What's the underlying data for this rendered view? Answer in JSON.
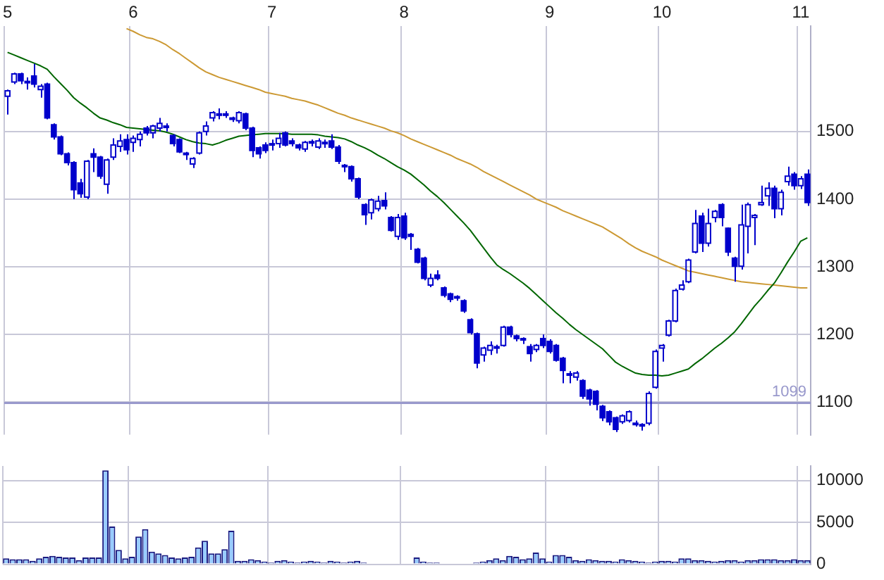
{
  "chart_data": [
    {
      "type": "candlestick",
      "categories": [
        "5",
        null,
        null,
        null,
        null,
        null,
        null,
        null,
        null,
        null,
        null,
        null,
        null,
        null,
        null,
        null,
        null,
        null,
        null,
        "6",
        null,
        null,
        null,
        null,
        null,
        null,
        null,
        null,
        null,
        null,
        null,
        null,
        null,
        null,
        null,
        null,
        null,
        null,
        null,
        null,
        "7",
        null,
        null,
        null,
        null,
        null,
        null,
        null,
        null,
        null,
        null,
        null,
        null,
        null,
        null,
        null,
        null,
        null,
        null,
        null,
        "8",
        null,
        null,
        null,
        null,
        null,
        null,
        null,
        null,
        null,
        null,
        null,
        null,
        null,
        null,
        null,
        null,
        null,
        null,
        null,
        null,
        null,
        "9",
        null,
        null,
        null,
        null,
        null,
        null,
        null,
        null,
        null,
        null,
        null,
        null,
        null,
        null,
        null,
        null,
        "10",
        null,
        null,
        null,
        null,
        null,
        null,
        null,
        null,
        null,
        null,
        null,
        null,
        null,
        null,
        null,
        null,
        null,
        null,
        null,
        null,
        "11",
        null
      ],
      "series": [
        {
          "type": "line",
          "color": "#006600",
          "values": [
            1617,
            1613,
            1609,
            1605,
            1601,
            1597,
            1592,
            1581,
            1571,
            1561,
            1550,
            1542,
            1535,
            1527,
            1520,
            1517,
            1513,
            1510,
            1506,
            1505,
            1504,
            1503,
            1502,
            1501,
            1499,
            1496,
            1492,
            1488,
            1485,
            1483,
            1482,
            1480,
            1483,
            1487,
            1490,
            1493,
            1494,
            1495,
            1496,
            1497,
            1497,
            1497,
            1497,
            1496,
            1496,
            1496,
            1496,
            1495,
            1493,
            1492,
            1491,
            1489,
            1485,
            1480,
            1476,
            1471,
            1465,
            1460,
            1454,
            1448,
            1443,
            1437,
            1429,
            1421,
            1412,
            1404,
            1395,
            1385,
            1375,
            1365,
            1354,
            1341,
            1328,
            1315,
            1303,
            1296,
            1290,
            1283,
            1276,
            1268,
            1259,
            1250,
            1241,
            1232,
            1224,
            1215,
            1207,
            1200,
            1193,
            1186,
            1179,
            1169,
            1159,
            1153,
            1148,
            1143,
            1141,
            1140,
            1140,
            1139,
            1140,
            1143,
            1146,
            1149,
            1157,
            1164,
            1172,
            1180,
            1187,
            1195,
            1204,
            1216,
            1229,
            1242,
            1253,
            1265,
            1276,
            1291,
            1307,
            1322,
            1338,
            1343
          ]
        },
        {
          "type": "line",
          "color": "#cc9933",
          "values": [
            null,
            null,
            null,
            null,
            null,
            null,
            null,
            null,
            null,
            null,
            null,
            null,
            null,
            null,
            null,
            null,
            null,
            null,
            1652,
            1648,
            1643,
            1639,
            1637,
            1633,
            1628,
            1621,
            1615,
            1608,
            1601,
            1594,
            1588,
            1584,
            1580,
            1577,
            1574,
            1571,
            1568,
            1565,
            1562,
            1558,
            1556,
            1554,
            1552,
            1549,
            1547,
            1545,
            1542,
            1539,
            1535,
            1531,
            1527,
            1524,
            1520,
            1517,
            1514,
            1511,
            1508,
            1505,
            1501,
            1498,
            1494,
            1489,
            1485,
            1481,
            1477,
            1473,
            1469,
            1465,
            1460,
            1456,
            1452,
            1447,
            1441,
            1436,
            1431,
            1426,
            1421,
            1416,
            1411,
            1406,
            1400,
            1396,
            1392,
            1388,
            1383,
            1379,
            1375,
            1371,
            1367,
            1363,
            1359,
            1353,
            1347,
            1341,
            1334,
            1328,
            1323,
            1319,
            1315,
            1310,
            1306,
            1302,
            1298,
            1294,
            1292,
            1290,
            1288,
            1286,
            1284,
            1282,
            1280,
            1278,
            1277,
            1276,
            1275,
            1274,
            1273,
            1272,
            1271,
            1270,
            1269,
            1269
          ]
        },
        {
          "type": "candlestick",
          "color": "#0000cc",
          "ohlc": [
            [
              1552,
              1562,
              1525,
              1560
            ],
            [
              1573,
              1587,
              1570,
              1585
            ],
            [
              1585,
              1587,
              1570,
              1575
            ],
            [
              1572,
              1580,
              1562,
              1574
            ],
            [
              1582,
              1600,
              1565,
              1570
            ],
            [
              1562,
              1570,
              1550,
              1567
            ],
            [
              1570,
              1572,
              1518,
              1520
            ],
            [
              1510,
              1512,
              1488,
              1492
            ],
            [
              1492,
              1494,
              1465,
              1467
            ],
            [
              1467,
              1469,
              1450,
              1454
            ],
            [
              1454,
              1456,
              1400,
              1414
            ],
            [
              1424,
              1430,
              1402,
              1408
            ],
            [
              1403,
              1458,
              1400,
              1456
            ],
            [
              1467,
              1475,
              1440,
              1462
            ],
            [
              1462,
              1464,
              1430,
              1434
            ],
            [
              1422,
              1460,
              1408,
              1458
            ],
            [
              1462,
              1490,
              1458,
              1480
            ],
            [
              1478,
              1496,
              1470,
              1486
            ],
            [
              1488,
              1496,
              1466,
              1473
            ],
            [
              1484,
              1494,
              1470,
              1490
            ],
            [
              1488,
              1500,
              1478,
              1496
            ],
            [
              1505,
              1508,
              1494,
              1498
            ],
            [
              1498,
              1510,
              1490,
              1508
            ],
            [
              1505,
              1520,
              1500,
              1512
            ],
            [
              1508,
              1512,
              1500,
              1506
            ],
            [
              1494,
              1496,
              1478,
              1482
            ],
            [
              1488,
              1490,
              1468,
              1470
            ],
            [
              1468,
              1470,
              1458,
              1466
            ],
            [
              1452,
              1462,
              1446,
              1460
            ],
            [
              1468,
              1500,
              1466,
              1498
            ],
            [
              1500,
              1515,
              1494,
              1508
            ],
            [
              1520,
              1530,
              1515,
              1528
            ],
            [
              1524,
              1534,
              1518,
              1526
            ],
            [
              1526,
              1530,
              1520,
              1524
            ],
            [
              1520,
              1522,
              1514,
              1518
            ],
            [
              1516,
              1530,
              1512,
              1528
            ],
            [
              1526,
              1528,
              1502,
              1505
            ],
            [
              1505,
              1507,
              1462,
              1472
            ],
            [
              1476,
              1478,
              1460,
              1467
            ],
            [
              1480,
              1484,
              1468,
              1472
            ],
            [
              1480,
              1488,
              1472,
              1482
            ],
            [
              1482,
              1498,
              1476,
              1490
            ],
            [
              1498,
              1500,
              1478,
              1480
            ],
            [
              1486,
              1490,
              1478,
              1482
            ],
            [
              1480,
              1482,
              1472,
              1476
            ],
            [
              1474,
              1486,
              1470,
              1484
            ],
            [
              1483,
              1488,
              1478,
              1485
            ],
            [
              1477,
              1490,
              1474,
              1486
            ],
            [
              1484,
              1488,
              1476,
              1482
            ],
            [
              1486,
              1496,
              1474,
              1477
            ],
            [
              1477,
              1480,
              1452,
              1456
            ],
            [
              1450,
              1452,
              1440,
              1448
            ],
            [
              1448,
              1450,
              1426,
              1430
            ],
            [
              1430,
              1432,
              1400,
              1403
            ],
            [
              1392,
              1394,
              1362,
              1377
            ],
            [
              1380,
              1401,
              1370,
              1399
            ],
            [
              1386,
              1405,
              1382,
              1397
            ],
            [
              1398,
              1410,
              1385,
              1390
            ],
            [
              1373,
              1375,
              1352,
              1354
            ],
            [
              1345,
              1378,
              1340,
              1373
            ],
            [
              1375,
              1380,
              1340,
              1343
            ],
            [
              1348,
              1350,
              1325,
              1345
            ],
            [
              1326,
              1328,
              1305,
              1307
            ],
            [
              1313,
              1315,
              1280,
              1283
            ],
            [
              1273,
              1290,
              1270,
              1283
            ],
            [
              1288,
              1295,
              1280,
              1283
            ],
            [
              1269,
              1271,
              1255,
              1258
            ],
            [
              1260,
              1262,
              1248,
              1252
            ],
            [
              1254,
              1258,
              1250,
              1256
            ],
            [
              1250,
              1252,
              1232,
              1235
            ],
            [
              1222,
              1224,
              1200,
              1203
            ],
            [
              1201,
              1203,
              1150,
              1158
            ],
            [
              1170,
              1182,
              1160,
              1180
            ],
            [
              1177,
              1190,
              1170,
              1184
            ],
            [
              1180,
              1185,
              1172,
              1182
            ],
            [
              1184,
              1213,
              1182,
              1211
            ],
            [
              1211,
              1213,
              1196,
              1200
            ],
            [
              1198,
              1200,
              1190,
              1194
            ],
            [
              1194,
              1196,
              1186,
              1192
            ],
            [
              1182,
              1186,
              1160,
              1172
            ],
            [
              1178,
              1186,
              1174,
              1184
            ],
            [
              1194,
              1200,
              1180,
              1184
            ],
            [
              1190,
              1193,
              1172,
              1175
            ],
            [
              1184,
              1186,
              1160,
              1162
            ],
            [
              1165,
              1167,
              1128,
              1147
            ],
            [
              1140,
              1146,
              1128,
              1142
            ],
            [
              1137,
              1146,
              1132,
              1143
            ],
            [
              1132,
              1134,
              1105,
              1109
            ],
            [
              1118,
              1120,
              1095,
              1105
            ],
            [
              1116,
              1118,
              1088,
              1097
            ],
            [
              1094,
              1096,
              1072,
              1077
            ],
            [
              1086,
              1088,
              1066,
              1071
            ],
            [
              1077,
              1079,
              1056,
              1060
            ],
            [
              1071,
              1082,
              1068,
              1080
            ],
            [
              1073,
              1088,
              1070,
              1086
            ],
            [
              1069,
              1073,
              1064,
              1067
            ],
            [
              1067,
              1069,
              1058,
              1065
            ],
            [
              1069,
              1116,
              1066,
              1113
            ],
            [
              1122,
              1178,
              1120,
              1175
            ],
            [
              1180,
              1186,
              1160,
              1184
            ],
            [
              1199,
              1222,
              1197,
              1220
            ],
            [
              1220,
              1268,
              1218,
              1265
            ],
            [
              1267,
              1280,
              1265,
              1273
            ],
            [
              1278,
              1312,
              1276,
              1310
            ],
            [
              1322,
              1384,
              1320,
              1364
            ],
            [
              1375,
              1380,
              1322,
              1335
            ],
            [
              1335,
              1386,
              1330,
              1364
            ],
            [
              1373,
              1384,
              1366,
              1382
            ],
            [
              1392,
              1394,
              1360,
              1373
            ],
            [
              1357,
              1358,
              1316,
              1322
            ],
            [
              1313,
              1315,
              1278,
              1301
            ],
            [
              1301,
              1392,
              1296,
              1362
            ],
            [
              1360,
              1395,
              1320,
              1392
            ],
            [
              1373,
              1378,
              1332,
              1376
            ],
            [
              1392,
              1420,
              1390,
              1395
            ],
            [
              1405,
              1425,
              1390,
              1416
            ],
            [
              1416,
              1420,
              1372,
              1386
            ],
            [
              1386,
              1414,
              1376,
              1410
            ],
            [
              1426,
              1448,
              1420,
              1434
            ],
            [
              1437,
              1440,
              1414,
              1420
            ],
            [
              1420,
              1434,
              1415,
              1430
            ],
            [
              1437,
              1444,
              1390,
              1395
            ]
          ]
        }
      ],
      "ylim": [
        1052,
        1656
      ],
      "yticks": [
        1100,
        1200,
        1300,
        1400,
        1500
      ],
      "grid": true,
      "ref_lines": [
        {
          "axis": "y",
          "value": 1099,
          "label": "1099",
          "color": "#9999cc"
        }
      ]
    },
    {
      "type": "bar",
      "categories": [
        "5",
        null,
        null,
        null,
        null,
        null,
        null,
        null,
        null,
        null,
        null,
        null,
        null,
        null,
        null,
        null,
        null,
        null,
        null,
        "6",
        null,
        null,
        null,
        null,
        null,
        null,
        null,
        null,
        null,
        null,
        null,
        null,
        null,
        null,
        null,
        null,
        null,
        null,
        null,
        null,
        "7",
        null,
        null,
        null,
        null,
        null,
        null,
        null,
        null,
        null,
        null,
        null,
        null,
        null,
        null,
        null,
        null,
        null,
        null,
        null,
        "8",
        null,
        null,
        null,
        null,
        null,
        null,
        null,
        null,
        null,
        null,
        null,
        null,
        null,
        null,
        null,
        null,
        null,
        null,
        null,
        null,
        null,
        "9",
        null,
        null,
        null,
        null,
        null,
        null,
        null,
        null,
        null,
        null,
        null,
        null,
        null,
        null,
        null,
        null,
        "10",
        null,
        null,
        null,
        null,
        null,
        null,
        null,
        null,
        null,
        null,
        null,
        null,
        null,
        null,
        null,
        null,
        null,
        null,
        null,
        null,
        "11",
        null
      ],
      "color": "#99ccff",
      "values": [
        700,
        600,
        600,
        600,
        400,
        700,
        900,
        1000,
        900,
        800,
        800,
        500,
        800,
        800,
        800,
        11200,
        4500,
        1700,
        700,
        900,
        3300,
        4200,
        1500,
        1300,
        1100,
        800,
        700,
        800,
        900,
        2000,
        2800,
        1300,
        1300,
        1800,
        4000,
        400,
        400,
        600,
        500,
        300,
        200,
        400,
        500,
        300,
        200,
        300,
        400,
        300,
        200,
        400,
        300,
        200,
        300,
        400,
        200,
        100,
        100,
        100,
        100,
        100,
        100,
        100,
        800,
        300,
        200,
        200,
        100,
        100,
        100,
        100,
        100,
        200,
        300,
        500,
        700,
        500,
        1000,
        900,
        600,
        700,
        1400,
        700,
        300,
        1100,
        1100,
        900,
        500,
        400,
        600,
        500,
        400,
        400,
        300,
        600,
        500,
        400,
        300,
        200,
        300,
        400,
        400,
        300,
        700,
        700,
        500,
        500,
        400,
        300,
        400,
        500,
        500,
        300,
        500,
        500,
        600,
        600,
        600,
        500,
        500,
        600,
        500,
        500
      ],
      "ylim": [
        0,
        11700
      ],
      "yticks": [
        0,
        5000,
        10000
      ],
      "grid": true,
      "tick_labels": "y"
    }
  ]
}
